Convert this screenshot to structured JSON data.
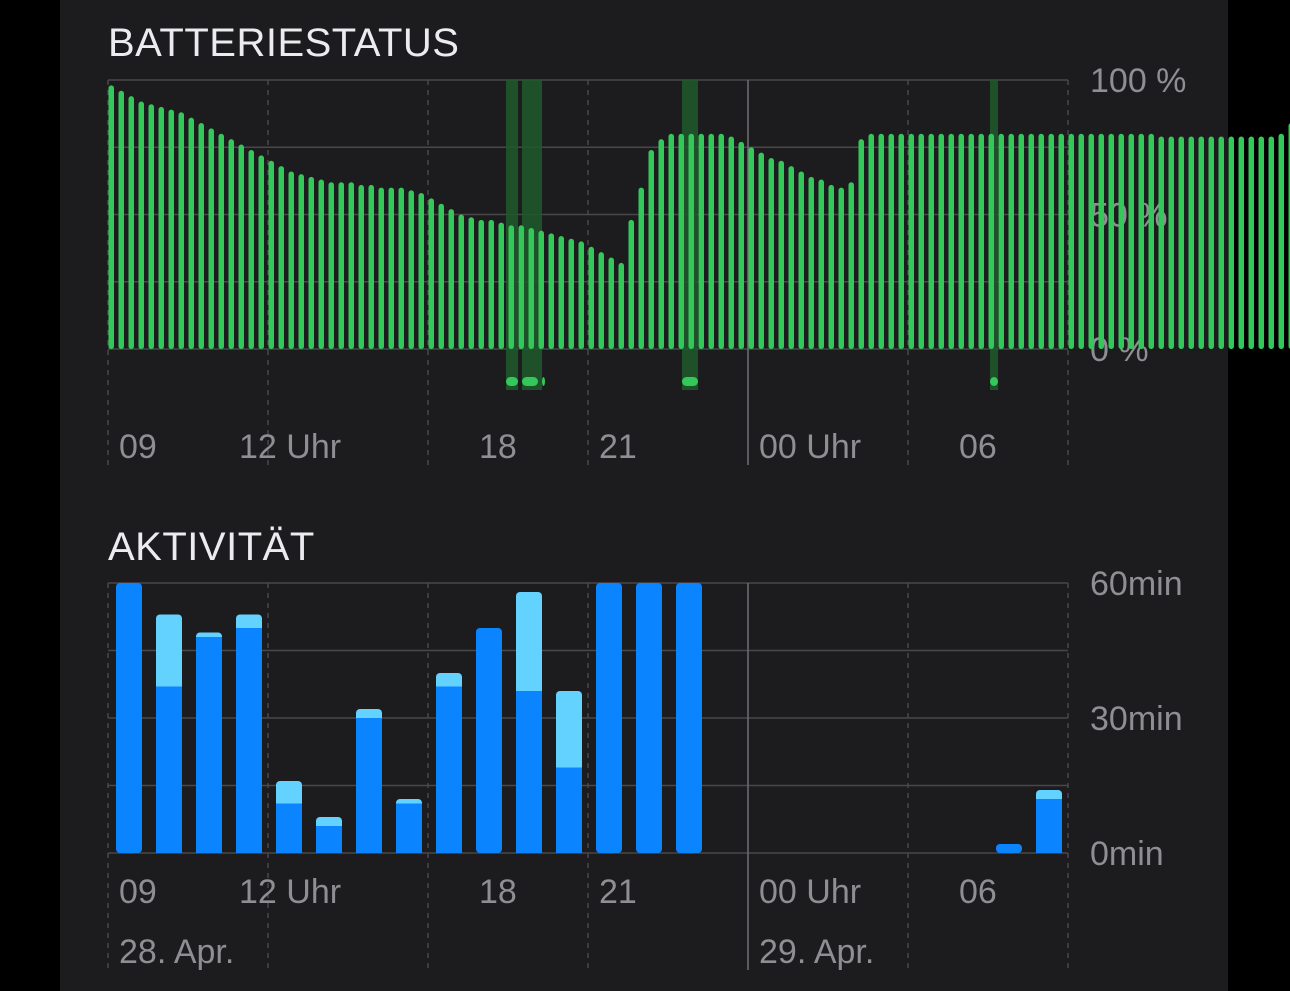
{
  "battery": {
    "title": "BATTERIESTATUS",
    "y_labels": [
      "100 %",
      "50 %",
      "0 %"
    ],
    "x_labels": [
      "09",
      "12 Uhr",
      "18",
      "21",
      "00 Uhr",
      "06"
    ]
  },
  "activity": {
    "title": "AKTIVITÄT",
    "y_labels": [
      "60min",
      "30min",
      "0min"
    ],
    "x_labels": [
      "09",
      "12 Uhr",
      "18",
      "21",
      "00 Uhr",
      "06"
    ],
    "date_labels": [
      "28. Apr.",
      "29. Apr."
    ]
  },
  "colors": {
    "battery_bar": "#34c759",
    "charging_band": "#1f5a2c",
    "activity_dark": "#0a84ff",
    "activity_light": "#64d2ff",
    "grid": "#48484a",
    "axis_text": "#8e8e93"
  },
  "chart_data": [
    {
      "type": "bar",
      "title": "BATTERIESTATUS",
      "x_unit": "hours since 08:00, 28. Apr.",
      "y_unit": "percent",
      "ylim": [
        0,
        100
      ],
      "start_x": 0.0,
      "bar_step_hours": 0.25,
      "values": [
        98,
        96,
        94,
        92,
        91,
        90,
        89,
        88,
        86,
        84,
        82,
        80,
        78,
        76,
        74,
        72,
        70,
        68,
        66,
        65,
        64,
        63,
        62,
        62,
        62,
        61,
        61,
        60,
        60,
        60,
        59,
        58,
        56,
        54,
        52,
        50,
        49,
        48,
        48,
        47,
        46,
        46,
        45,
        44,
        43,
        42,
        41,
        40,
        38,
        36,
        34,
        32,
        48,
        60,
        74,
        78,
        80,
        80,
        80,
        80,
        80,
        80,
        79,
        77,
        75,
        73,
        71,
        70,
        68,
        66,
        64,
        63,
        61,
        60,
        62,
        78,
        80,
        80,
        80,
        80,
        80,
        80,
        80,
        80,
        80,
        80,
        80,
        80,
        80,
        80,
        80,
        80,
        80,
        80,
        80,
        80,
        80,
        80,
        80,
        80,
        80,
        80,
        80,
        80,
        80,
        79,
        79,
        79,
        79,
        79,
        79,
        79,
        79,
        79,
        79,
        79,
        79,
        80,
        84
      ],
      "charging_periods_hours": [
        [
          9.95,
          10.25
        ],
        [
          10.35,
          10.85
        ],
        [
          14.35,
          14.75
        ],
        [
          22.05,
          22.25
        ]
      ],
      "charge_markers_hours": [
        [
          9.95,
          10.25
        ],
        [
          10.35,
          10.75
        ],
        [
          10.85,
          10.9
        ],
        [
          14.35,
          14.75
        ],
        [
          22.05,
          22.25
        ]
      ]
    },
    {
      "type": "bar",
      "title": "AKTIVITÄT",
      "x_unit": "hour slot starting at 08:00, 28. Apr.",
      "y_unit": "minutes",
      "ylim": [
        0,
        60
      ],
      "series": [
        {
          "name": "screen_on",
          "values": [
            60,
            37,
            48,
            50,
            11,
            6,
            30,
            11,
            37,
            50,
            36,
            19,
            60,
            60,
            60,
            0,
            0,
            0,
            0,
            0,
            0,
            0,
            2,
            12
          ]
        },
        {
          "name": "screen_off",
          "values": [
            0,
            16,
            1,
            3,
            5,
            2,
            2,
            1,
            3,
            0,
            22,
            17,
            0,
            0,
            0,
            0,
            0,
            0,
            0,
            0,
            0,
            0,
            0,
            2
          ]
        }
      ]
    }
  ]
}
